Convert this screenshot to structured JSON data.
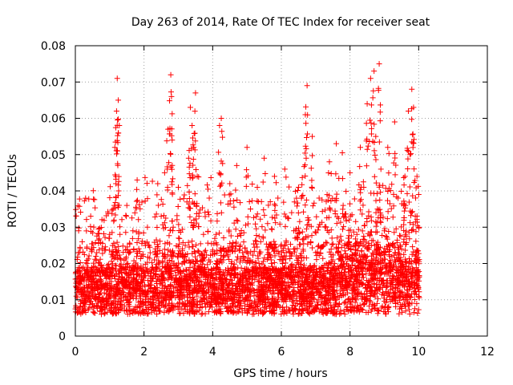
{
  "chart_data": {
    "type": "scatter",
    "title": "Day 263 of 2014, Rate Of TEC Index for receiver seat",
    "xlabel": "GPS time / hours",
    "ylabel": "ROTI / TECUs",
    "xlim": [
      0,
      12
    ],
    "ylim": [
      0,
      0.08
    ],
    "xticks": [
      0,
      2,
      4,
      6,
      8,
      10,
      12
    ],
    "xtick_labels": [
      "0",
      "2",
      "4",
      "6",
      "8",
      "10",
      "12"
    ],
    "yticks": [
      0,
      0.01,
      0.02,
      0.03,
      0.04,
      0.05,
      0.06,
      0.07,
      0.08
    ],
    "ytick_labels": [
      "0",
      "0.01",
      "0.02",
      "0.03",
      "0.04",
      "0.05",
      "0.06",
      "0.07",
      "0.08"
    ],
    "grid": true,
    "marker": "plus",
    "color": "#ff0000",
    "series": [
      {
        "name": "ROTI",
        "x": [
          0.05,
          0.12,
          0.2,
          0.3,
          0.45,
          0.6,
          0.75,
          0.9,
          1.0,
          1.1,
          1.15,
          1.2,
          1.22,
          1.25,
          1.28,
          1.3,
          1.4,
          1.5,
          1.6,
          1.7,
          1.8,
          1.9,
          2.0,
          2.1,
          2.2,
          2.3,
          2.4,
          2.5,
          2.6,
          2.7,
          2.78,
          2.8,
          2.82,
          2.85,
          2.9,
          3.0,
          3.1,
          3.2,
          3.3,
          3.35,
          3.4,
          3.45,
          3.5,
          3.55,
          3.6,
          3.7,
          3.8,
          3.9,
          4.0,
          4.1,
          4.2,
          4.25,
          4.3,
          4.4,
          4.5,
          4.6,
          4.7,
          4.8,
          4.9,
          5.0,
          5.1,
          5.2,
          5.3,
          5.4,
          5.5,
          5.6,
          5.7,
          5.8,
          5.9,
          6.0,
          6.1,
          6.2,
          6.3,
          6.4,
          6.5,
          6.6,
          6.7,
          6.75,
          6.8,
          6.9,
          7.0,
          7.1,
          7.2,
          7.3,
          7.4,
          7.5,
          7.6,
          7.7,
          7.8,
          7.9,
          8.0,
          8.1,
          8.2,
          8.3,
          8.4,
          8.5,
          8.6,
          8.7,
          8.75,
          8.8,
          8.85,
          8.9,
          9.0,
          9.1,
          9.2,
          9.3,
          9.4,
          9.5,
          9.6,
          9.7,
          9.75,
          9.8,
          9.85,
          9.9,
          9.95,
          10.0
        ],
        "y": [
          0.012,
          0.018,
          0.026,
          0.011,
          0.015,
          0.022,
          0.013,
          0.017,
          0.028,
          0.035,
          0.052,
          0.062,
          0.071,
          0.065,
          0.058,
          0.028,
          0.019,
          0.036,
          0.014,
          0.024,
          0.043,
          0.011,
          0.016,
          0.03,
          0.013,
          0.021,
          0.042,
          0.033,
          0.045,
          0.057,
          0.072,
          0.066,
          0.054,
          0.03,
          0.018,
          0.041,
          0.014,
          0.025,
          0.049,
          0.063,
          0.058,
          0.052,
          0.067,
          0.044,
          0.033,
          0.021,
          0.014,
          0.038,
          0.016,
          0.028,
          0.058,
          0.06,
          0.024,
          0.015,
          0.042,
          0.019,
          0.047,
          0.013,
          0.022,
          0.052,
          0.035,
          0.018,
          0.041,
          0.026,
          0.049,
          0.031,
          0.016,
          0.044,
          0.038,
          0.021,
          0.046,
          0.012,
          0.034,
          0.027,
          0.041,
          0.018,
          0.061,
          0.069,
          0.032,
          0.055,
          0.023,
          0.038,
          0.014,
          0.03,
          0.048,
          0.021,
          0.053,
          0.017,
          0.036,
          0.025,
          0.045,
          0.013,
          0.028,
          0.052,
          0.041,
          0.064,
          0.071,
          0.073,
          0.055,
          0.035,
          0.075,
          0.046,
          0.029,
          0.052,
          0.019,
          0.059,
          0.038,
          0.024,
          0.044,
          0.062,
          0.05,
          0.068,
          0.063,
          0.033,
          0.044,
          0.039
        ]
      }
    ]
  }
}
